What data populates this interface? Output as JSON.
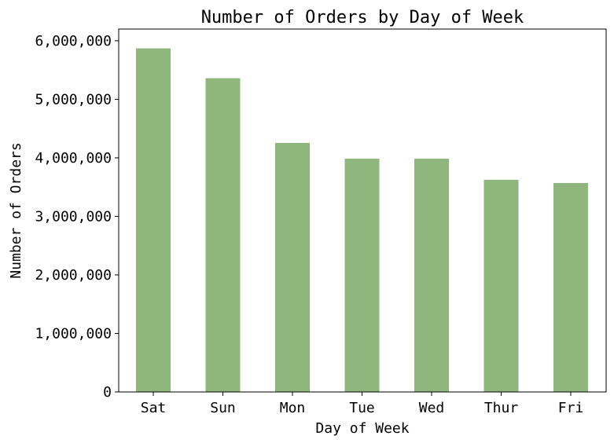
{
  "chart_data": {
    "type": "bar",
    "title": "Number of Orders by Day of Week",
    "xlabel": "Day of Week",
    "ylabel": "Number of Orders",
    "categories": [
      "Sat",
      "Sun",
      "Mon",
      "Tue",
      "Wed",
      "Thur",
      "Fri"
    ],
    "values": [
      5870000,
      5360000,
      4255000,
      3985000,
      3985000,
      3625000,
      3570000
    ],
    "ylim": [
      0,
      6200000
    ],
    "yticks": [
      0,
      1000000,
      2000000,
      3000000,
      4000000,
      5000000,
      6000000
    ],
    "ytick_labels": [
      "0",
      "1,000,000",
      "2,000,000",
      "3,000,000",
      "4,000,000",
      "5,000,000",
      "6,000,000"
    ],
    "bar_color": "#8fb67c",
    "grid": false,
    "legend": "none"
  }
}
